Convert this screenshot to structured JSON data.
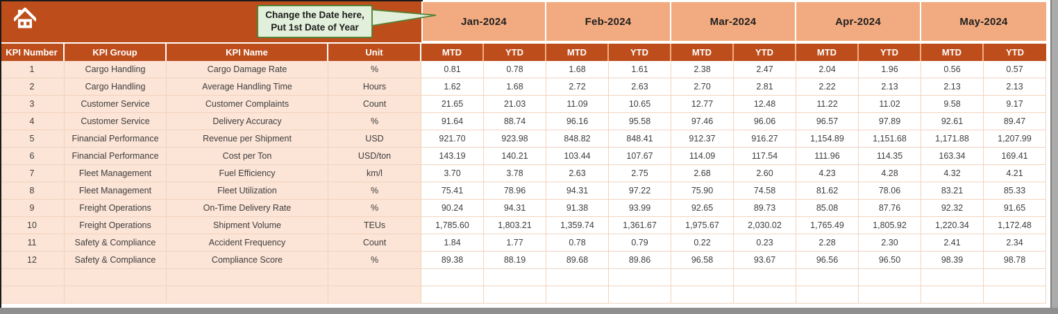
{
  "callout": {
    "line1": "Change the Date here,",
    "line2": "Put 1st Date of Year"
  },
  "icons": {
    "home": "house"
  },
  "table": {
    "left_headers": [
      "KPI Number",
      "KPI Group",
      "KPI Name",
      "Unit"
    ],
    "months": [
      "Jan-2024",
      "Feb-2024",
      "Mar-2024",
      "Apr-2024",
      "May-2024"
    ],
    "period_labels": [
      "MTD",
      "YTD"
    ],
    "rows": [
      {
        "kpi_number": "1",
        "kpi_group": "Cargo Handling",
        "kpi_name": "Cargo Damage Rate",
        "unit": "%",
        "values": [
          "0.81",
          "0.78",
          "1.68",
          "1.61",
          "2.38",
          "2.47",
          "2.04",
          "1.96",
          "0.56",
          "0.57"
        ]
      },
      {
        "kpi_number": "2",
        "kpi_group": "Cargo Handling",
        "kpi_name": "Average Handling Time",
        "unit": "Hours",
        "values": [
          "1.62",
          "1.68",
          "2.72",
          "2.63",
          "2.70",
          "2.81",
          "2.22",
          "2.13",
          "2.13",
          "2.13"
        ]
      },
      {
        "kpi_number": "3",
        "kpi_group": "Customer Service",
        "kpi_name": "Customer Complaints",
        "unit": "Count",
        "values": [
          "21.65",
          "21.03",
          "11.09",
          "10.65",
          "12.77",
          "12.48",
          "11.22",
          "11.02",
          "9.58",
          "9.17"
        ]
      },
      {
        "kpi_number": "4",
        "kpi_group": "Customer Service",
        "kpi_name": "Delivery Accuracy",
        "unit": "%",
        "values": [
          "91.64",
          "88.74",
          "96.16",
          "95.58",
          "97.46",
          "96.06",
          "96.57",
          "97.89",
          "92.61",
          "89.47"
        ]
      },
      {
        "kpi_number": "5",
        "kpi_group": "Financial Performance",
        "kpi_name": "Revenue per Shipment",
        "unit": "USD",
        "values": [
          "921.70",
          "923.98",
          "848.82",
          "848.41",
          "912.37",
          "916.27",
          "1,154.89",
          "1,151.68",
          "1,171.88",
          "1,207.99"
        ]
      },
      {
        "kpi_number": "6",
        "kpi_group": "Financial Performance",
        "kpi_name": "Cost per Ton",
        "unit": "USD/ton",
        "values": [
          "143.19",
          "140.21",
          "103.44",
          "107.67",
          "114.09",
          "117.54",
          "111.96",
          "114.35",
          "163.34",
          "169.41"
        ]
      },
      {
        "kpi_number": "7",
        "kpi_group": "Fleet Management",
        "kpi_name": "Fuel Efficiency",
        "unit": "km/l",
        "values": [
          "3.70",
          "3.78",
          "2.63",
          "2.75",
          "2.68",
          "2.60",
          "4.23",
          "4.28",
          "4.32",
          "4.21"
        ]
      },
      {
        "kpi_number": "8",
        "kpi_group": "Fleet Management",
        "kpi_name": "Fleet Utilization",
        "unit": "%",
        "values": [
          "75.41",
          "78.96",
          "94.31",
          "97.22",
          "75.90",
          "74.58",
          "81.62",
          "78.06",
          "83.21",
          "85.33"
        ]
      },
      {
        "kpi_number": "9",
        "kpi_group": "Freight Operations",
        "kpi_name": "On-Time Delivery Rate",
        "unit": "%",
        "values": [
          "90.24",
          "94.31",
          "91.38",
          "93.99",
          "92.65",
          "89.73",
          "85.08",
          "87.76",
          "92.32",
          "91.65"
        ]
      },
      {
        "kpi_number": "10",
        "kpi_group": "Freight Operations",
        "kpi_name": "Shipment Volume",
        "unit": "TEUs",
        "values": [
          "1,785.60",
          "1,803.21",
          "1,359.74",
          "1,361.67",
          "1,975.67",
          "2,030.02",
          "1,765.49",
          "1,805.92",
          "1,220.34",
          "1,172.48"
        ]
      },
      {
        "kpi_number": "11",
        "kpi_group": "Safety & Compliance",
        "kpi_name": "Accident Frequency",
        "unit": "Count",
        "values": [
          "1.84",
          "1.77",
          "0.78",
          "0.79",
          "0.22",
          "0.23",
          "2.28",
          "2.30",
          "2.41",
          "2.34"
        ]
      },
      {
        "kpi_number": "12",
        "kpi_group": "Safety & Compliance",
        "kpi_name": "Compliance Score",
        "unit": "%",
        "values": [
          "89.38",
          "88.19",
          "89.68",
          "89.86",
          "96.58",
          "93.67",
          "96.56",
          "96.50",
          "98.39",
          "98.78"
        ]
      },
      {
        "kpi_number": "",
        "kpi_group": "",
        "kpi_name": "",
        "unit": "",
        "values": [
          "",
          "",
          "",
          "",
          "",
          "",
          "",
          "",
          "",
          ""
        ]
      },
      {
        "kpi_number": "",
        "kpi_group": "",
        "kpi_name": "",
        "unit": "",
        "values": [
          "",
          "",
          "",
          "",
          "",
          "",
          "",
          "",
          "",
          ""
        ]
      }
    ]
  },
  "colors": {
    "header_bg": "#BD4E1C",
    "month_bg": "#F2AB80",
    "left_col_bg": "#FCE4D6",
    "grid_line": "#F2D3BD",
    "callout_bg": "#E2EFDA",
    "callout_border": "#548235",
    "header_text": "#FFFFFF",
    "month_text": "#1F1F1F",
    "data_text": "#3D3D3D"
  }
}
